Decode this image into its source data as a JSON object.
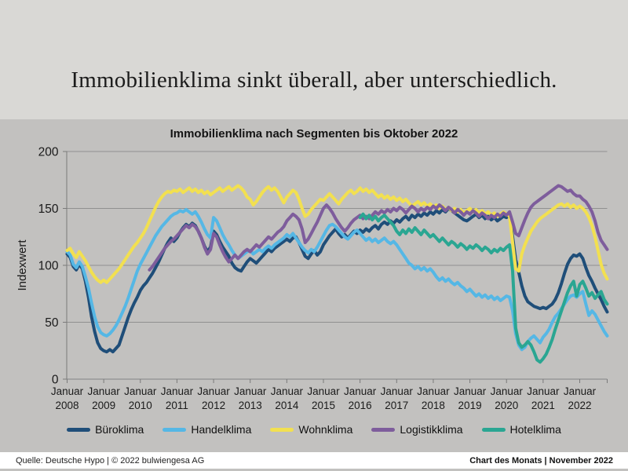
{
  "title": "Immobilienklima sinkt überall, aber unterschiedlich.",
  "chart": {
    "title": "Immobilienklima nach Segmenten bis Oktober 2022"
  },
  "footer": {
    "source": "Quelle: Deutsche Hypo | © 2022 bulwiengesa AG",
    "edition": "Chart des Monats | November 2022"
  },
  "colors": {
    "background_top": "#d9d8d5",
    "background_chart": "#c2c1bf",
    "gridline": "#909090",
    "axis": "#7a7a7a",
    "footer_background": "#ffffff",
    "text": "#1a1a1a"
  },
  "chart_data": {
    "type": "line",
    "title": "Immobilienklima nach Segmenten bis Oktober 2022",
    "xlabel": "",
    "ylabel": "Indexwert",
    "ylim": [
      0,
      200
    ],
    "yticks": [
      0,
      50,
      100,
      150,
      200
    ],
    "grid": true,
    "legend_position": "bottom",
    "x_unit": "month",
    "x_start": "Januar 2008",
    "x_end": "Oktober 2022",
    "x_count": 178,
    "x_tick_indices": [
      0,
      12,
      24,
      36,
      48,
      60,
      72,
      84,
      96,
      108,
      120,
      132,
      144,
      156,
      168
    ],
    "x_tick_labels": [
      "Januar 2008",
      "Januar 2009",
      "Januar 2010",
      "Januar 2011",
      "Januar 2012",
      "Januar 2013",
      "Januar 2014",
      "Januar 2015",
      "Januar 2016",
      "Januar 2017",
      "Januar 2018",
      "Januar 2019",
      "Januar 2020",
      "Januar 2021",
      "Januar 2022"
    ],
    "series": [
      {
        "name": "Büroklima",
        "color": "#1f4e79",
        "values": [
          110,
          107,
          99,
          96,
          101,
          97,
          86,
          72,
          55,
          42,
          32,
          27,
          25,
          24,
          26,
          24,
          27,
          30,
          38,
          46,
          54,
          61,
          67,
          72,
          78,
          82,
          85,
          89,
          93,
          98,
          103,
          109,
          115,
          120,
          124,
          121,
          124,
          129,
          133,
          136,
          134,
          137,
          135,
          130,
          124,
          117,
          112,
          116,
          130,
          127,
          121,
          116,
          112,
          108,
          102,
          98,
          96,
          95,
          99,
          103,
          106,
          104,
          102,
          105,
          108,
          111,
          114,
          112,
          115,
          117,
          119,
          121,
          123,
          121,
          124,
          125,
          120,
          114,
          108,
          106,
          110,
          113,
          109,
          112,
          118,
          122,
          126,
          129,
          132,
          128,
          125,
          127,
          124,
          127,
          130,
          128,
          131,
          129,
          132,
          130,
          133,
          135,
          132,
          136,
          138,
          136,
          139,
          137,
          140,
          138,
          141,
          143,
          140,
          144,
          142,
          145,
          143,
          146,
          144,
          147,
          145,
          148,
          146,
          149,
          147,
          150,
          148,
          146,
          144,
          142,
          140,
          139,
          141,
          143,
          145,
          142,
          144,
          141,
          143,
          140,
          142,
          139,
          141,
          143,
          142,
          144,
          125,
          105,
          94,
          82,
          73,
          68,
          66,
          64,
          63,
          62,
          63,
          62,
          64,
          66,
          70,
          76,
          84,
          93,
          101,
          106,
          109,
          108,
          110,
          106,
          98,
          91,
          86,
          80,
          75,
          70,
          64,
          59
        ]
      },
      {
        "name": "Handelklima",
        "color": "#55b7e5",
        "values": [
          112,
          109,
          101,
          98,
          103,
          99,
          90,
          80,
          67,
          55,
          46,
          41,
          39,
          38,
          40,
          43,
          47,
          52,
          58,
          64,
          71,
          79,
          87,
          95,
          101,
          106,
          111,
          116,
          121,
          126,
          130,
          134,
          137,
          140,
          143,
          145,
          146,
          148,
          147,
          149,
          147,
          145,
          147,
          143,
          138,
          132,
          127,
          124,
          142,
          139,
          133,
          127,
          122,
          118,
          113,
          109,
          106,
          108,
          110,
          112,
          113,
          110,
          112,
          114,
          112,
          115,
          117,
          115,
          118,
          120,
          122,
          124,
          127,
          125,
          128,
          124,
          120,
          116,
          113,
          111,
          114,
          112,
          116,
          121,
          126,
          131,
          135,
          136,
          134,
          131,
          128,
          125,
          123,
          126,
          129,
          131,
          128,
          125,
          122,
          124,
          121,
          123,
          120,
          122,
          124,
          121,
          119,
          121,
          118,
          114,
          110,
          106,
          102,
          100,
          97,
          99,
          96,
          98,
          95,
          97,
          94,
          90,
          87,
          89,
          86,
          88,
          85,
          83,
          85,
          82,
          80,
          77,
          79,
          76,
          73,
          75,
          72,
          74,
          71,
          73,
          70,
          72,
          69,
          71,
          73,
          72,
          60,
          40,
          30,
          26,
          28,
          33,
          36,
          38,
          35,
          32,
          37,
          40,
          44,
          50,
          55,
          58,
          62,
          66,
          70,
          73,
          74,
          72,
          75,
          77,
          66,
          56,
          60,
          57,
          52,
          47,
          42,
          38
        ]
      },
      {
        "name": "Wohnklima",
        "color": "#f2e050",
        "values": [
          113,
          115,
          110,
          107,
          112,
          108,
          104,
          99,
          94,
          90,
          87,
          85,
          87,
          85,
          88,
          91,
          94,
          97,
          101,
          105,
          109,
          113,
          117,
          120,
          124,
          128,
          133,
          139,
          145,
          151,
          156,
          160,
          163,
          165,
          164,
          166,
          165,
          167,
          164,
          166,
          168,
          165,
          167,
          164,
          166,
          163,
          165,
          162,
          164,
          166,
          168,
          165,
          167,
          169,
          166,
          168,
          170,
          168,
          165,
          160,
          158,
          153,
          156,
          160,
          164,
          167,
          169,
          166,
          168,
          165,
          160,
          155,
          160,
          163,
          166,
          164,
          158,
          150,
          143,
          145,
          149,
          152,
          155,
          158,
          157,
          160,
          163,
          160,
          157,
          154,
          158,
          161,
          164,
          166,
          163,
          165,
          168,
          165,
          167,
          164,
          166,
          163,
          160,
          162,
          159,
          161,
          158,
          160,
          157,
          159,
          156,
          158,
          155,
          152,
          154,
          156,
          153,
          155,
          152,
          154,
          151,
          153,
          150,
          152,
          149,
          151,
          148,
          150,
          147,
          149,
          146,
          148,
          150,
          147,
          149,
          146,
          148,
          145,
          147,
          144,
          146,
          143,
          145,
          147,
          145,
          143,
          120,
          97,
          95,
          110,
          118,
          124,
          130,
          134,
          138,
          141,
          143,
          145,
          147,
          149,
          151,
          153,
          154,
          152,
          154,
          151,
          153,
          150,
          152,
          150,
          147,
          142,
          135,
          125,
          113,
          101,
          93,
          88
        ]
      },
      {
        "name": "Logistikklima",
        "color": "#7e5d9c",
        "values": [
          null,
          null,
          null,
          null,
          null,
          null,
          null,
          null,
          null,
          null,
          null,
          null,
          null,
          null,
          null,
          null,
          null,
          null,
          null,
          null,
          null,
          null,
          null,
          null,
          null,
          null,
          null,
          96,
          99,
          103,
          107,
          111,
          115,
          118,
          121,
          123,
          126,
          129,
          132,
          135,
          133,
          136,
          134,
          130,
          124,
          116,
          110,
          114,
          128,
          125,
          118,
          112,
          107,
          103,
          106,
          109,
          106,
          109,
          112,
          114,
          112,
          115,
          118,
          116,
          119,
          122,
          125,
          123,
          126,
          129,
          131,
          134,
          139,
          142,
          145,
          143,
          140,
          132,
          120,
          123,
          128,
          133,
          138,
          144,
          150,
          153,
          150,
          146,
          141,
          137,
          133,
          130,
          133,
          137,
          140,
          142,
          144,
          141,
          143,
          141,
          144,
          147,
          145,
          148,
          146,
          149,
          147,
          150,
          148,
          151,
          149,
          146,
          149,
          152,
          150,
          147,
          150,
          148,
          151,
          149,
          152,
          150,
          153,
          151,
          148,
          151,
          149,
          146,
          149,
          147,
          144,
          147,
          145,
          148,
          146,
          143,
          146,
          144,
          141,
          144,
          142,
          145,
          143,
          146,
          144,
          147,
          138,
          128,
          126,
          133,
          140,
          146,
          151,
          154,
          156,
          158,
          160,
          162,
          164,
          166,
          168,
          170,
          169,
          167,
          165,
          166,
          163,
          161,
          161,
          158,
          156,
          152,
          147,
          139,
          129,
          122,
          118,
          114
        ]
      },
      {
        "name": "Hotelklima",
        "color": "#2aa692",
        "values": [
          null,
          null,
          null,
          null,
          null,
          null,
          null,
          null,
          null,
          null,
          null,
          null,
          null,
          null,
          null,
          null,
          null,
          null,
          null,
          null,
          null,
          null,
          null,
          null,
          null,
          null,
          null,
          null,
          null,
          null,
          null,
          null,
          null,
          null,
          null,
          null,
          null,
          null,
          null,
          null,
          null,
          null,
          null,
          null,
          null,
          null,
          null,
          null,
          null,
          null,
          null,
          null,
          null,
          null,
          null,
          null,
          null,
          null,
          null,
          null,
          null,
          null,
          null,
          null,
          null,
          null,
          null,
          null,
          null,
          null,
          null,
          null,
          null,
          null,
          null,
          null,
          null,
          null,
          null,
          null,
          null,
          null,
          null,
          null,
          null,
          null,
          null,
          null,
          null,
          null,
          null,
          null,
          null,
          null,
          null,
          null,
          142,
          145,
          141,
          144,
          140,
          143,
          139,
          142,
          144,
          141,
          138,
          135,
          130,
          127,
          131,
          128,
          132,
          129,
          133,
          130,
          127,
          131,
          128,
          125,
          127,
          124,
          121,
          124,
          121,
          118,
          121,
          119,
          116,
          119,
          117,
          114,
          117,
          115,
          118,
          116,
          113,
          116,
          114,
          111,
          114,
          112,
          115,
          113,
          116,
          118,
          95,
          45,
          32,
          28,
          30,
          33,
          30,
          24,
          17,
          15,
          18,
          22,
          28,
          35,
          44,
          52,
          60,
          68,
          76,
          82,
          86,
          73,
          83,
          86,
          80,
          73,
          76,
          71,
          74,
          77,
          70,
          66
        ]
      }
    ]
  }
}
